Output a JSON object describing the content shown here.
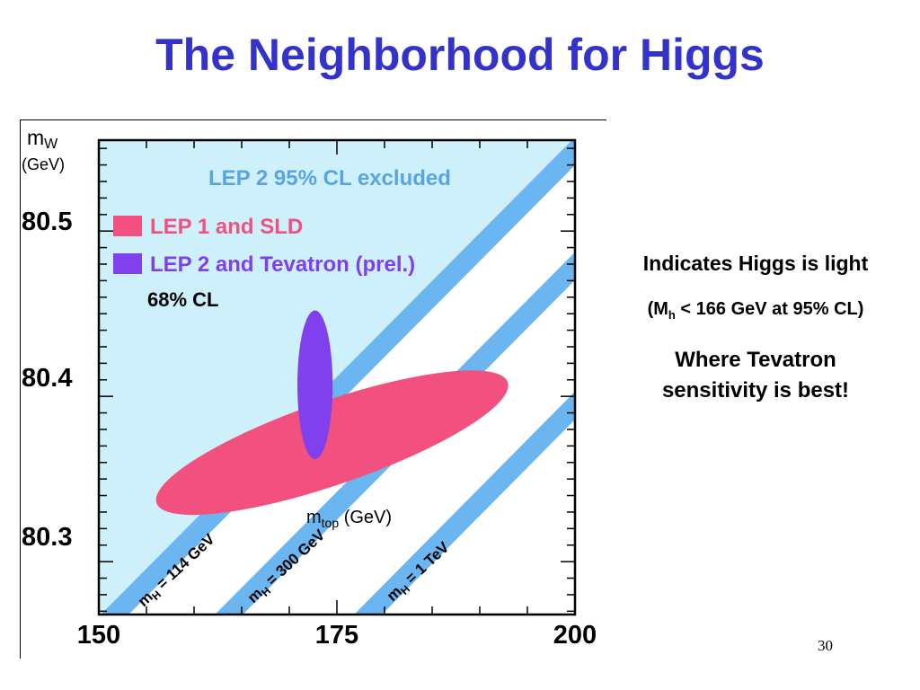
{
  "slide": {
    "title": "The Neighborhood for Higgs",
    "page_number": "30",
    "notes": {
      "line1": "Indicates Higgs is light",
      "line2_prefix": "(M",
      "line2_sub": "h",
      "line2_suffix": " < 166 GeV at 95% CL)",
      "line3a": "Where Tevatron",
      "line3b": "sensitivity is best!"
    }
  },
  "chart_data": {
    "type": "scatter",
    "x_axis": {
      "label_main": "m",
      "label_sub": "top",
      "label_unit": " (GeV)",
      "range": [
        150,
        200
      ],
      "ticks": [
        "150",
        "175",
        "200"
      ]
    },
    "y_axis": {
      "label_main": "m",
      "label_sub": "W",
      "label_unit": "(GeV)",
      "range": [
        80.268,
        80.555
      ],
      "ticks": [
        "80.3",
        "80.4",
        "80.5"
      ]
    },
    "excluded_region_label": "LEP 2 95% CL excluded",
    "legend": [
      {
        "label": "LEP 1 and SLD",
        "color": "#f2507e"
      },
      {
        "label": "LEP 2 and Tevatron (prel.)",
        "color": "#8040ee"
      }
    ],
    "cl_label": "68% CL",
    "higgs_bands": [
      {
        "label": "m_H = 114 GeV",
        "text_main": "m",
        "text_sub": "H",
        "text_rest": " = 114 GeV"
      },
      {
        "label": "m_H = 300 GeV",
        "text_main": "m",
        "text_sub": "H",
        "text_rest": " = 300 GeV"
      },
      {
        "label": "m_H = 1 TeV",
        "text_main": "m",
        "text_sub": "H",
        "text_rest": " = 1 TeV"
      }
    ],
    "ellipses": [
      {
        "name": "LEP 1 and SLD",
        "x_center": 174.5,
        "y_center": 80.372,
        "x_span": 39,
        "y_span": 0.092,
        "angle_deg": -19
      },
      {
        "name": "LEP 2 and Tevatron (prel.)",
        "x_center": 172.7,
        "y_center": 80.407,
        "x_span": 3.7,
        "y_span": 0.09,
        "angle_deg": 0
      }
    ],
    "colors": {
      "excluded_fill": "#cdf0fa",
      "band": "#6bb5f0",
      "axis_text": "#000000",
      "region_text": "#5aa5df"
    },
    "grid": false
  }
}
